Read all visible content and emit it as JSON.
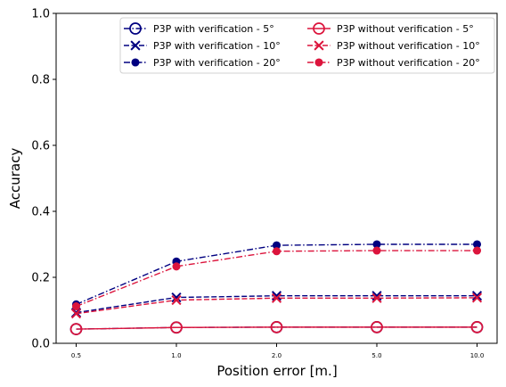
{
  "chart_data": {
    "type": "line",
    "title": "",
    "xlabel": "Position error [m.]",
    "ylabel": "Accuracy",
    "categories": [
      "0.5",
      "1.0",
      "2.0",
      "5.0",
      "10.0"
    ],
    "ylim": [
      0.0,
      1.0
    ],
    "yticks": [
      "0.0",
      "0.2",
      "0.4",
      "0.6",
      "0.8",
      "1.0"
    ],
    "grid": false,
    "legend_position": "top-right",
    "series": [
      {
        "name": "P3P with verification - 5°",
        "color": "#000080",
        "dash": "dashdot",
        "marker": "open-circle",
        "values": [
          0.043,
          0.048,
          0.049,
          0.049,
          0.049
        ]
      },
      {
        "name": "P3P with verification - 10°",
        "color": "#000080",
        "dash": "dashed",
        "marker": "x",
        "values": [
          0.093,
          0.139,
          0.144,
          0.144,
          0.144
        ]
      },
      {
        "name": "P3P with verification - 20°",
        "color": "#000080",
        "dash": "dashdot",
        "marker": "filled-circle",
        "values": [
          0.118,
          0.248,
          0.297,
          0.3,
          0.3
        ]
      },
      {
        "name": "P3P without verification - 5°",
        "color": "#dc143c",
        "dash": "solid",
        "marker": "open-circle",
        "values": [
          0.043,
          0.048,
          0.049,
          0.049,
          0.049
        ]
      },
      {
        "name": "P3P without verification - 10°",
        "color": "#dc143c",
        "dash": "dashed",
        "marker": "x",
        "values": [
          0.09,
          0.131,
          0.137,
          0.137,
          0.138
        ]
      },
      {
        "name": "P3P without verification - 20°",
        "color": "#dc143c",
        "dash": "dashdot",
        "marker": "filled-circle",
        "values": [
          0.112,
          0.233,
          0.279,
          0.281,
          0.281
        ]
      }
    ]
  }
}
